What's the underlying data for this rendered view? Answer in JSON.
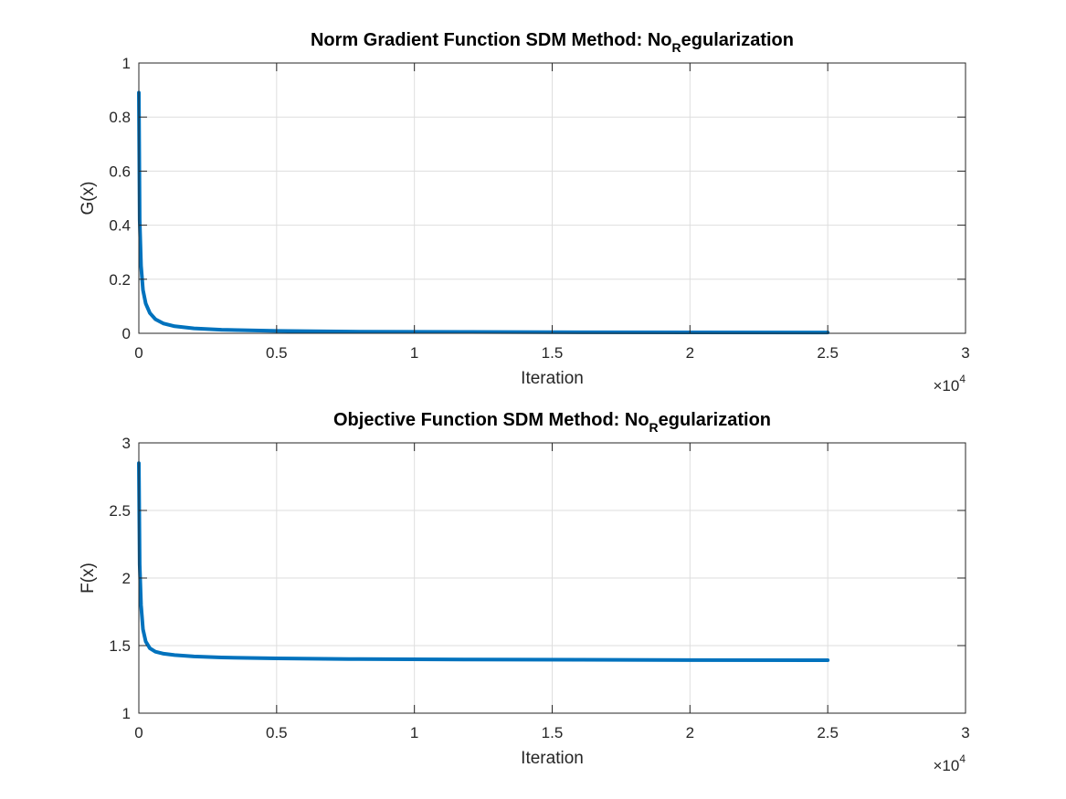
{
  "chart_data": [
    {
      "type": "line",
      "title_main": "Norm Gradient Function SDM Method: No",
      "title_sub": "R",
      "title_tail": "egularization",
      "xlabel": "Iteration",
      "ylabel": "G(x)",
      "xlim": [
        0,
        30000
      ],
      "ylim": [
        0,
        1
      ],
      "xticks": [
        0,
        5000,
        10000,
        15000,
        20000,
        25000,
        30000
      ],
      "xtick_labels": [
        "0",
        "0.5",
        "1",
        "1.5",
        "2",
        "2.5",
        "3"
      ],
      "yticks": [
        0,
        0.2,
        0.4,
        0.6,
        0.8,
        1
      ],
      "ytick_labels": [
        "0",
        "0.2",
        "0.4",
        "0.6",
        "0.8",
        "1"
      ],
      "x_exponent_base": "×10",
      "x_exponent_power": "4",
      "grid": true,
      "series": [
        {
          "color": "#0072bd",
          "x": [
            0,
            30,
            80,
            150,
            250,
            400,
            600,
            900,
            1300,
            2000,
            3000,
            5000,
            8000,
            12000,
            16000,
            20000,
            25000
          ],
          "y": [
            0.89,
            0.42,
            0.25,
            0.16,
            0.11,
            0.075,
            0.052,
            0.036,
            0.026,
            0.018,
            0.013,
            0.009,
            0.006,
            0.005,
            0.004,
            0.0035,
            0.003
          ]
        }
      ]
    },
    {
      "type": "line",
      "title_main": "Objective Function SDM Method: No",
      "title_sub": "R",
      "title_tail": "egularization",
      "xlabel": "Iteration",
      "ylabel": "F(x)",
      "xlim": [
        0,
        30000
      ],
      "ylim": [
        1,
        3
      ],
      "xticks": [
        0,
        5000,
        10000,
        15000,
        20000,
        25000,
        30000
      ],
      "xtick_labels": [
        "0",
        "0.5",
        "1",
        "1.5",
        "2",
        "2.5",
        "3"
      ],
      "yticks": [
        1,
        1.5,
        2,
        2.5,
        3
      ],
      "ytick_labels": [
        "1",
        "1.5",
        "2",
        "2.5",
        "3"
      ],
      "x_exponent_base": "×10",
      "x_exponent_power": "4",
      "grid": true,
      "series": [
        {
          "color": "#0072bd",
          "x": [
            0,
            30,
            80,
            150,
            250,
            400,
            600,
            900,
            1300,
            2000,
            3000,
            5000,
            8000,
            12000,
            16000,
            20000,
            25000
          ],
          "y": [
            2.85,
            2.1,
            1.8,
            1.62,
            1.53,
            1.48,
            1.455,
            1.44,
            1.43,
            1.42,
            1.412,
            1.405,
            1.4,
            1.397,
            1.395,
            1.393,
            1.392
          ]
        }
      ]
    }
  ]
}
